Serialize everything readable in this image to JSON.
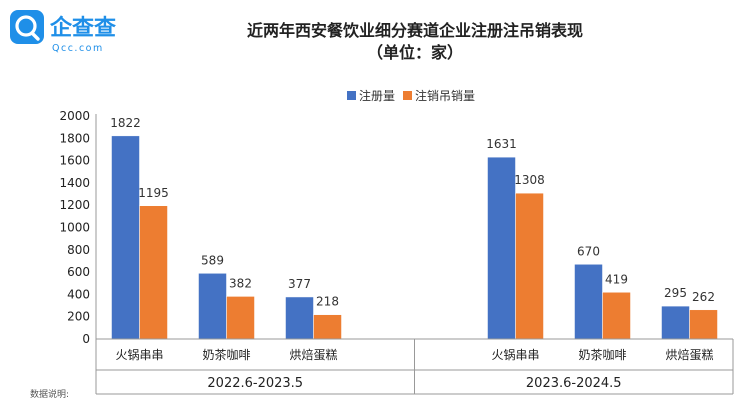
{
  "logo": {
    "brand": "企查查",
    "domain": "Qcc.com"
  },
  "footnote": "数据说明:",
  "colors": {
    "registered": "#4472c4",
    "cancelled": "#ed7d31",
    "logo": "#1f8fe8",
    "axis": "#999999"
  },
  "chart_data": {
    "type": "bar",
    "title": "近两年西安餐饮业细分赛道企业注册注吊销表现",
    "subtitle": "（单位：家）",
    "legend_position": "top-center",
    "ylim": [
      0,
      2000
    ],
    "yticks": [
      0,
      200,
      400,
      600,
      800,
      1000,
      1200,
      1400,
      1600,
      1800,
      2000
    ],
    "groups": [
      {
        "period": "2022.6-2023.5",
        "categories": [
          "火锅串串",
          "奶茶咖啡",
          "烘焙蛋糕"
        ],
        "series": [
          {
            "name": "注册量",
            "values": [
              1822,
              589,
              377
            ]
          },
          {
            "name": "注销吊销量",
            "values": [
              1195,
              382,
              218
            ]
          }
        ]
      },
      {
        "period": "2023.6-2024.5",
        "categories": [
          "火锅串串",
          "奶茶咖啡",
          "烘焙蛋糕"
        ],
        "series": [
          {
            "name": "注册量",
            "values": [
              1631,
              670,
              295
            ]
          },
          {
            "name": "注销吊销量",
            "values": [
              1308,
              419,
              262
            ]
          }
        ]
      }
    ]
  }
}
